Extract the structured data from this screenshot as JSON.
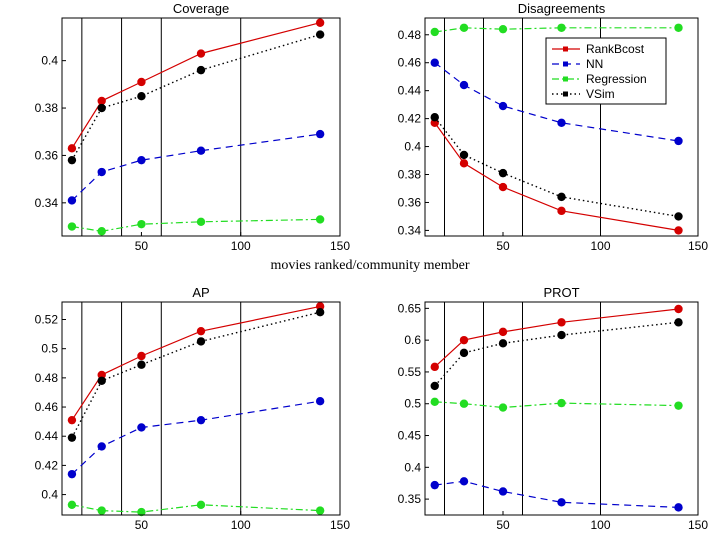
{
  "shared_xlabel": "movies ranked/community member",
  "colors": {
    "RankBcost": "#d40000",
    "NN": "#0000cc",
    "Regression": "#22dd22",
    "VSim": "#000000"
  },
  "legend_items": [
    "RankBcost",
    "NN",
    "Regression",
    "VSim"
  ],
  "chart_data": [
    {
      "type": "line",
      "title": "Coverage",
      "xlim": [
        10,
        150
      ],
      "xticks": [
        50,
        100,
        150
      ],
      "ylim": [
        0.326,
        0.418
      ],
      "yticks": [
        0.34,
        0.36,
        0.38,
        0.4
      ],
      "ytick_labels": [
        "0.34",
        "0.36",
        "0.38",
        "0.4"
      ],
      "vlines": [
        20,
        40,
        60,
        100
      ],
      "x": [
        15,
        30,
        50,
        80,
        140
      ],
      "series": [
        {
          "name": "RankBcost",
          "values": [
            0.363,
            0.383,
            0.391,
            0.403,
            0.416
          ]
        },
        {
          "name": "NN",
          "values": [
            0.341,
            0.353,
            0.358,
            0.362,
            0.369
          ]
        },
        {
          "name": "Regression",
          "values": [
            0.33,
            0.328,
            0.331,
            0.332,
            0.333
          ]
        },
        {
          "name": "VSim",
          "values": [
            0.358,
            0.38,
            0.385,
            0.396,
            0.411
          ]
        }
      ],
      "legend": false
    },
    {
      "type": "line",
      "title": "Disagreements",
      "xlim": [
        10,
        150
      ],
      "xticks": [
        50,
        100,
        150
      ],
      "ylim": [
        0.336,
        0.492
      ],
      "yticks": [
        0.34,
        0.36,
        0.38,
        0.4,
        0.42,
        0.44,
        0.46,
        0.48
      ],
      "ytick_labels": [
        "0.34",
        "0.36",
        "0.38",
        "0.4",
        "0.42",
        "0.44",
        "0.46",
        "0.48"
      ],
      "vlines": [
        20,
        40,
        60,
        100
      ],
      "x": [
        15,
        30,
        50,
        80,
        140
      ],
      "series": [
        {
          "name": "RankBcost",
          "values": [
            0.417,
            0.388,
            0.371,
            0.354,
            0.34
          ]
        },
        {
          "name": "NN",
          "values": [
            0.46,
            0.444,
            0.429,
            0.417,
            0.404
          ]
        },
        {
          "name": "Regression",
          "values": [
            0.482,
            0.485,
            0.484,
            0.485,
            0.485
          ]
        },
        {
          "name": "VSim",
          "values": [
            0.421,
            0.394,
            0.381,
            0.364,
            0.35
          ]
        }
      ],
      "legend": true
    },
    {
      "type": "line",
      "title": "AP",
      "xlim": [
        10,
        150
      ],
      "xticks": [
        50,
        100,
        150
      ],
      "ylim": [
        0.386,
        0.532
      ],
      "yticks": [
        0.4,
        0.42,
        0.44,
        0.46,
        0.48,
        0.5,
        0.52
      ],
      "ytick_labels": [
        "0.4",
        "0.42",
        "0.44",
        "0.46",
        "0.48",
        "0.5",
        "0.52"
      ],
      "vlines": [
        20,
        40,
        60,
        100
      ],
      "x": [
        15,
        30,
        50,
        80,
        140
      ],
      "series": [
        {
          "name": "RankBcost",
          "values": [
            0.451,
            0.482,
            0.495,
            0.512,
            0.529
          ]
        },
        {
          "name": "NN",
          "values": [
            0.414,
            0.433,
            0.446,
            0.451,
            0.464
          ]
        },
        {
          "name": "Regression",
          "values": [
            0.393,
            0.389,
            0.388,
            0.393,
            0.389
          ]
        },
        {
          "name": "VSim",
          "values": [
            0.439,
            0.478,
            0.489,
            0.505,
            0.525
          ]
        }
      ],
      "legend": false
    },
    {
      "type": "line",
      "title": "PROT",
      "xlim": [
        10,
        150
      ],
      "xticks": [
        50,
        100,
        150
      ],
      "ylim": [
        0.325,
        0.66
      ],
      "yticks": [
        0.35,
        0.4,
        0.45,
        0.5,
        0.55,
        0.6,
        0.65
      ],
      "ytick_labels": [
        "0.35",
        "0.4",
        "0.45",
        "0.5",
        "0.55",
        "0.6",
        "0.65"
      ],
      "vlines": [
        20,
        40,
        60,
        100
      ],
      "x": [
        15,
        30,
        50,
        80,
        140
      ],
      "series": [
        {
          "name": "RankBcost",
          "values": [
            0.558,
            0.6,
            0.613,
            0.628,
            0.649
          ]
        },
        {
          "name": "NN",
          "values": [
            0.372,
            0.378,
            0.362,
            0.345,
            0.337
          ]
        },
        {
          "name": "Regression",
          "values": [
            0.503,
            0.5,
            0.494,
            0.501,
            0.497
          ]
        },
        {
          "name": "VSim",
          "values": [
            0.528,
            0.58,
            0.595,
            0.608,
            0.628
          ]
        }
      ],
      "legend": false
    }
  ]
}
